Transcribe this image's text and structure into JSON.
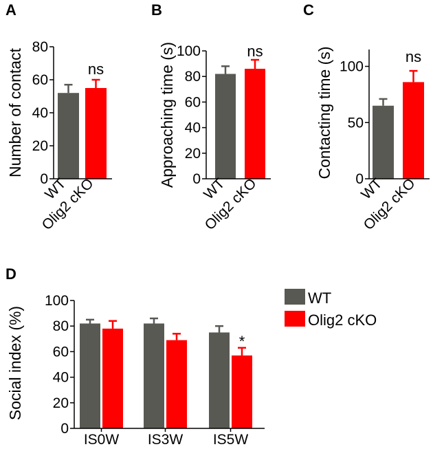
{
  "colors": {
    "wt": "#595954",
    "cko": "#ff0000",
    "axis": "#000000"
  },
  "legend": {
    "wt": "WT",
    "cko": "Olig2 cKO"
  },
  "chart_data": [
    {
      "panel": "A",
      "type": "bar",
      "categories": [
        "WT",
        "Olig2 cKO"
      ],
      "values": [
        52,
        55
      ],
      "errors": [
        5,
        5
      ],
      "ylabel": "Number of contact",
      "ylim": [
        0,
        80
      ],
      "yticks": [
        0,
        20,
        40,
        60,
        80
      ],
      "annotation": "ns"
    },
    {
      "panel": "B",
      "type": "bar",
      "categories": [
        "WT",
        "Olig2 cKO"
      ],
      "values": [
        82,
        86
      ],
      "errors": [
        6,
        7
      ],
      "ylabel": "Approaching time (s)",
      "ylim": [
        0,
        100
      ],
      "yticks": [
        0,
        20,
        40,
        60,
        80,
        100
      ],
      "annotation": "ns"
    },
    {
      "panel": "C",
      "type": "bar",
      "categories": [
        "WT",
        "Olig2 cKO"
      ],
      "values": [
        65,
        86
      ],
      "errors": [
        6,
        10
      ],
      "ylabel": "Contacting time (s)",
      "ylim": [
        0,
        115
      ],
      "yticks": [
        0,
        50,
        100
      ],
      "annotation": "ns"
    },
    {
      "panel": "D",
      "type": "bar",
      "categories": [
        "IS0W",
        "IS3W",
        "IS5W"
      ],
      "series": [
        {
          "name": "WT",
          "values": [
            82,
            82,
            75
          ],
          "errors": [
            3,
            4,
            5
          ]
        },
        {
          "name": "Olig2 cKO",
          "values": [
            78,
            69,
            57
          ],
          "errors": [
            6,
            5,
            6
          ]
        }
      ],
      "ylabel": "Social index (%)",
      "ylim": [
        0,
        100
      ],
      "yticks": [
        0,
        20,
        40,
        60,
        80,
        100
      ],
      "annotations": [
        {
          "category": "IS5W",
          "series": "Olig2 cKO",
          "text": "*"
        }
      ]
    }
  ]
}
